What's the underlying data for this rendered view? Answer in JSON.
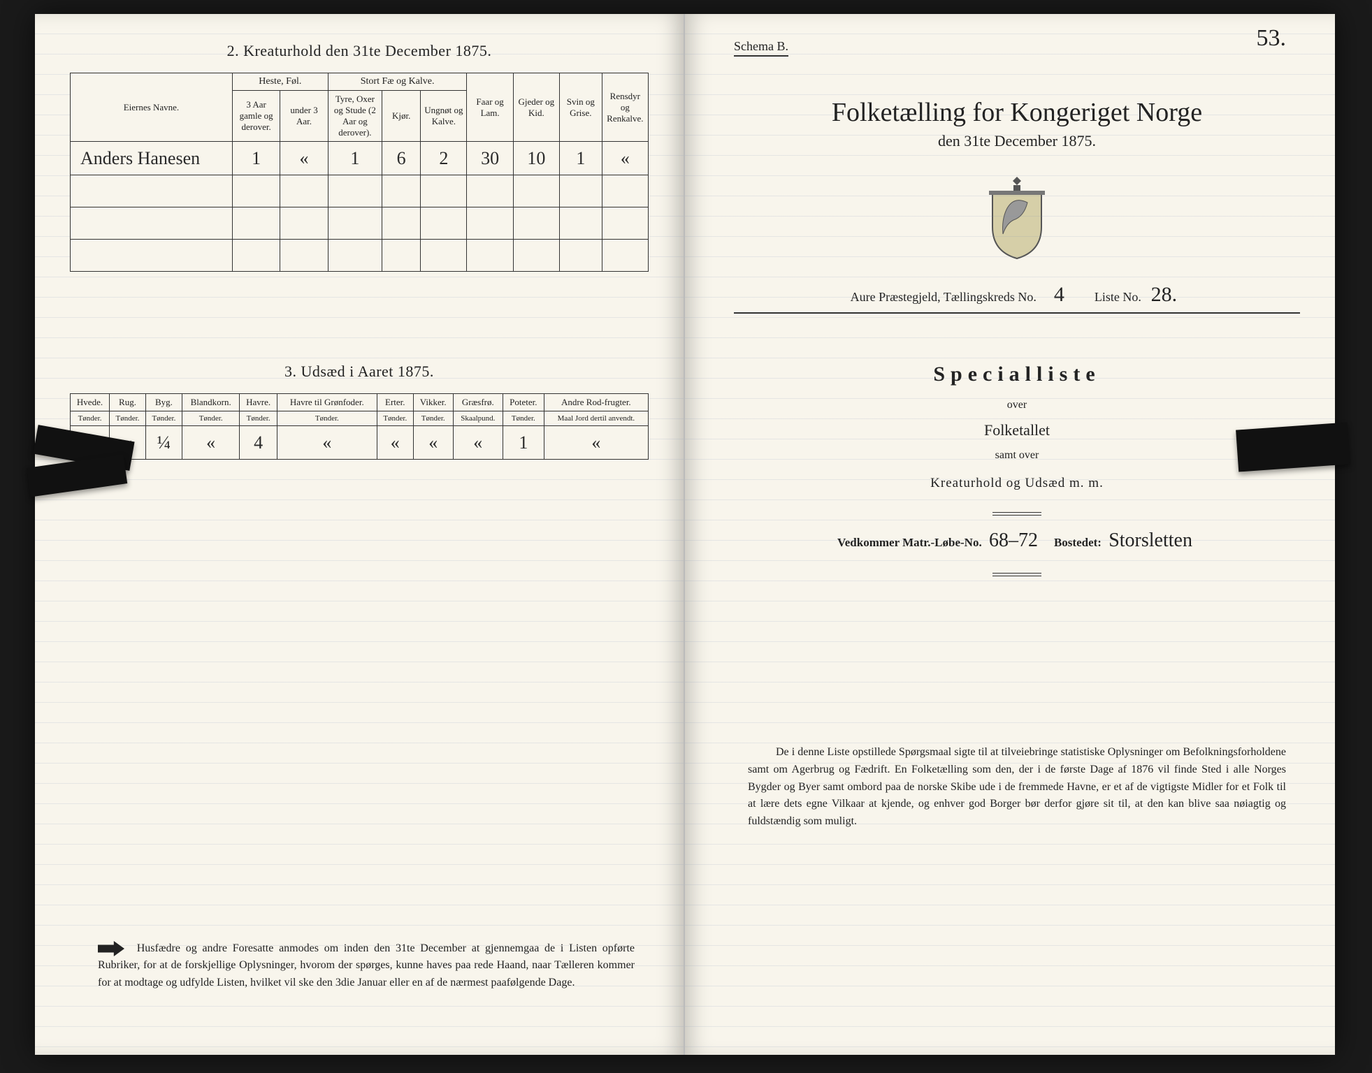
{
  "left": {
    "section2_title": "2.  Kreaturhold den 31te December 1875.",
    "table2": {
      "col_eier": "Eiernes Navne.",
      "grp_heste": "Heste, Føl.",
      "grp_stort": "Stort Fæ og Kalve.",
      "col_faar": "Faar og Lam.",
      "col_gjeder": "Gjeder og Kid.",
      "col_svin": "Svin og Grise.",
      "col_rensdyr": "Rensdyr og Renkalve.",
      "sub_heste1": "3 Aar gamle og derover.",
      "sub_heste2": "under 3 Aar.",
      "sub_stort1": "Tyre, Oxer og Stude (2 Aar og derover).",
      "sub_stort2": "Kjør.",
      "sub_stort3": "Ungnøt og Kalve.",
      "rows": [
        {
          "eier": "Anders Hanesen",
          "c": [
            "1",
            "«",
            "1",
            "6",
            "2",
            "30",
            "10",
            "1",
            "«"
          ]
        }
      ],
      "empty_rows": 3
    },
    "section3_title": "3.  Udsæd i Aaret 1875.",
    "table3": {
      "cols": [
        "Hvede.",
        "Rug.",
        "Byg.",
        "Blandkorn.",
        "Havre.",
        "Havre til Grønfoder.",
        "Erter.",
        "Vikker.",
        "Græsfrø.",
        "Poteter.",
        "Andre Rod-frugter."
      ],
      "units": [
        "Tønder.",
        "Tønder.",
        "Tønder.",
        "Tønder.",
        "Tønder.",
        "Tønder.",
        "Tønder.",
        "Tønder.",
        "Skaalpund.",
        "Tønder.",
        "Maal Jord dertil anvendt."
      ],
      "row": [
        "«",
        "«",
        "¼",
        "«",
        "4",
        "«",
        "«",
        "«",
        "«",
        "1",
        "«"
      ]
    },
    "footer": "Husfædre og andre Foresatte anmodes om inden den 31te December at gjennemgaa de i Listen opførte Rubriker, for at de forskjellige Oplysninger, hvorom der spørges, kunne haves paa rede Haand, naar Tælleren kommer for at modtage og udfylde Listen, hvilket vil ske den 3die Januar eller en af de nærmest paafølgende Dage."
  },
  "right": {
    "page_number": "53.",
    "schema": "Schema B.",
    "title": "Folketælling for Kongeriget Norge",
    "subtitle": "den 31te December 1875.",
    "meta_prefix": "Aure Præstegjeld,  Tællingskreds No.",
    "meta_kreds": "4",
    "meta_liste_label": "Liste No.",
    "meta_liste": "28.",
    "special_title": "Specialliste",
    "over": "over",
    "folketallet": "Folketallet",
    "samt_over": "samt over",
    "kreatur": "Kreaturhold og Udsæd m. m.",
    "vedk_label1": "Vedkommer Matr.-Løbe-No.",
    "vedk_val1": "68–72",
    "vedk_label2": "Bostedet:",
    "vedk_val2": "Storsletten",
    "body": "De i denne Liste opstillede Spørgsmaal sigte til at tilveiebringe statistiske Oplysninger om Befolkningsforholdene samt om Agerbrug og Fædrift.  En Folketælling som den, der i de første Dage af 1876 vil finde Sted i alle Norges Bygder og Byer samt ombord paa de norske Skibe ude i de fremmede Havne, er et af de vigtigste Midler for et Folk til at lære dets egne Vilkaar at kjende, og enhver god Borger bør derfor gjøre sit til, at den kan blive saa nøiagtig og fuldstændig som muligt."
  }
}
